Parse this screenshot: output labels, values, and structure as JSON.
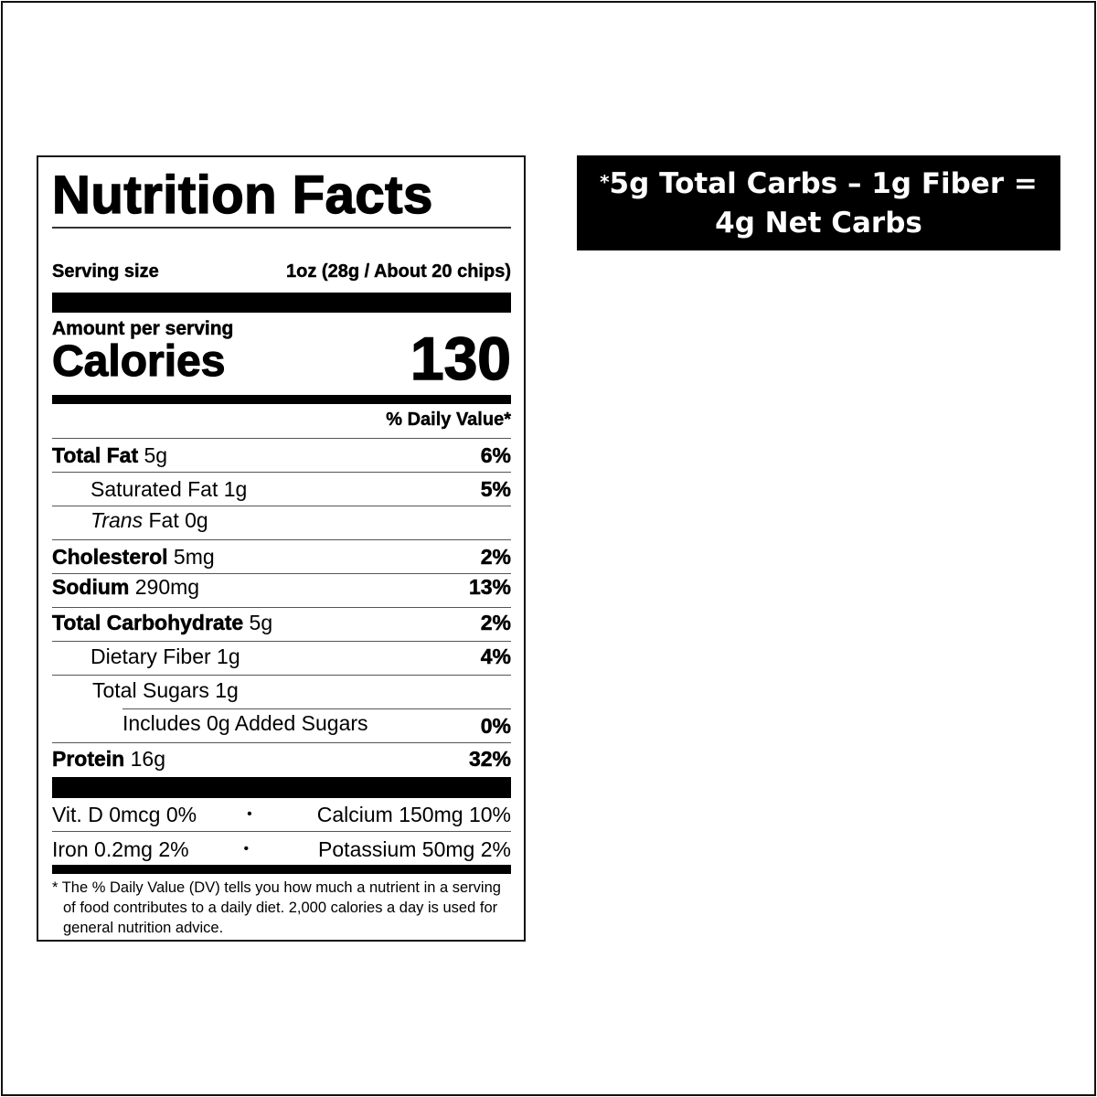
{
  "label": {
    "title": "Nutrition Facts",
    "serving_label": "Serving size",
    "serving_value": "1oz (28g / About 20 chips)",
    "amount_per_serving": "Amount per serving",
    "calories_label": "Calories",
    "calories_value": "130",
    "dv_header": "% Daily Value*",
    "rows": [
      {
        "name": "Total Fat",
        "amount": "5g",
        "dv": "6%"
      },
      {
        "name": "Saturated Fat",
        "amount": "1g",
        "dv": "5%"
      },
      {
        "name_italic": "Trans",
        "name": "Fat",
        "amount": "0g",
        "dv": ""
      },
      {
        "name": "Cholesterol",
        "amount": "5mg",
        "dv": "2%"
      },
      {
        "name": "Sodium",
        "amount": "290mg",
        "dv": "13%"
      },
      {
        "name": "Total Carbohydrate",
        "amount": "5g",
        "dv": "2%"
      },
      {
        "name": "Dietary Fiber",
        "amount": "1g",
        "dv": "4%"
      },
      {
        "name": "Total Sugars",
        "amount": "1g",
        "dv": ""
      },
      {
        "name": "Includes 0g Added Sugars",
        "amount": "",
        "dv": "0%"
      },
      {
        "name": "Protein",
        "amount": "16g",
        "dv": "32%"
      }
    ],
    "vitamins": [
      {
        "left": "Vit. D 0mcg 0%",
        "sep": "•",
        "right": "Calcium 150mg 10%"
      },
      {
        "left": "Iron 0.2mg 2%",
        "sep": "•",
        "right": "Potassium 50mg 2%"
      }
    ],
    "footnote": "* The % Daily Value (DV) tells you how much a nutrient in a serving of food contributes to a daily diet. 2,000 calories a day is used for general nutrition advice."
  },
  "net_carbs": {
    "asterisk": "*",
    "line1": "5g Total Carbs – 1g Fiber =",
    "line2": "4g Net Carbs"
  }
}
